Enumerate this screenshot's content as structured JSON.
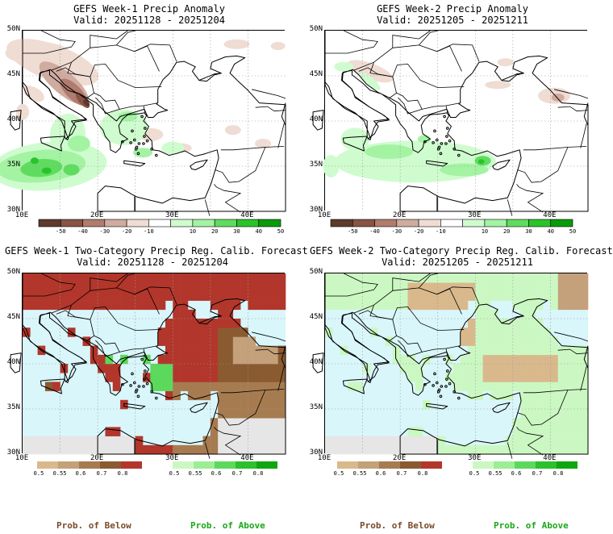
{
  "panels": [
    {
      "title_line1": "GEFS Week-1 Precip Anomaly",
      "title_line2": "Valid: 20251128 - 20251204"
    },
    {
      "title_line1": "GEFS Week-2 Precip Anomaly",
      "title_line2": "Valid: 20251205 - 20251211"
    },
    {
      "title_line1": "GEFS Week-1 Two-Category Precip Reg. Calib. Forecast",
      "title_line2": "Valid: 20251128 - 20251204"
    },
    {
      "title_line1": "GEFS Week-2 Two-Category Precip Reg. Calib. Forecast",
      "title_line2": "Valid: 20251205 - 20251211"
    }
  ],
  "lat_labels": [
    "50N",
    "45N",
    "40N",
    "35N",
    "30N"
  ],
  "lon_labels": [
    "10E",
    "20E",
    "30E",
    "40E"
  ],
  "anomaly_ticks": [
    "-50",
    "-40",
    "-30",
    "-20",
    "-10",
    "10",
    "20",
    "30",
    "40",
    "50"
  ],
  "prob_ticks": [
    "0.5",
    "0.55",
    "0.6",
    "0.7",
    "0.8"
  ],
  "prob_below_label": "Prob. of Below",
  "prob_above_label": "Prob. of Above",
  "colors": {
    "sea": "#d9f6fb",
    "land_gray": "#e6e6e6",
    "anom_dry": [
      "#5e3a2b",
      "#875445",
      "#b07c6e",
      "#d0aba0",
      "#efdcd3"
    ],
    "anom_wet": [
      "#cffccf",
      "#a3f3a3",
      "#5fdc5f",
      "#2ac42a",
      "#0a9b0a"
    ],
    "prob_below": [
      "#d9b98c",
      "#c4a17a",
      "#a77b50",
      "#8a5a30",
      "#b2362b"
    ],
    "prob_above": [
      "#cbf8c2",
      "#9bee93",
      "#5cd95c",
      "#2cc02c",
      "#10a610"
    ]
  }
}
